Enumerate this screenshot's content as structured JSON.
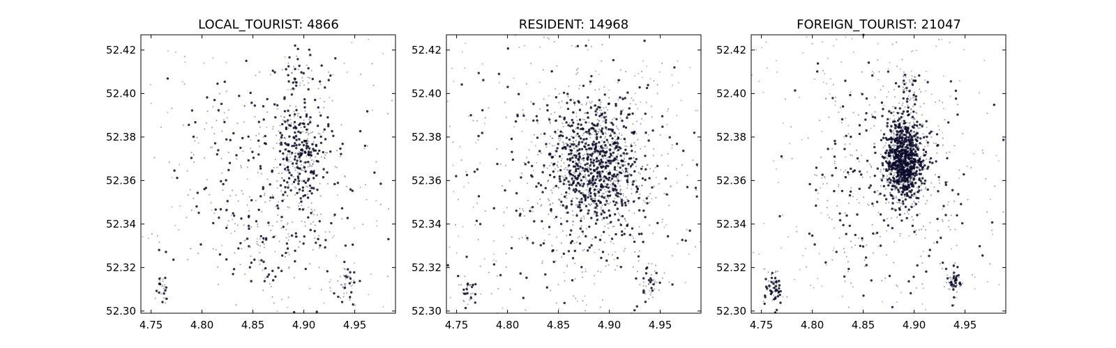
{
  "chart_data": [
    {
      "type": "scatter",
      "title": "LOCAL_TOURIST: 4866",
      "xlim": [
        4.74,
        4.99
      ],
      "ylim": [
        52.299,
        52.427
      ],
      "xticks": [
        "4.75",
        "4.80",
        "4.85",
        "4.90",
        "4.95"
      ],
      "yticks": [
        "52.30",
        "52.32",
        "52.34",
        "52.36",
        "52.38",
        "52.40",
        "52.42"
      ],
      "grid": false,
      "point_color": "#0b0b2a",
      "clusters": [
        {
          "x": 4.895,
          "y": 52.372,
          "spread_x": 0.012,
          "spread_y": 0.011,
          "weight": 0.32
        },
        {
          "x": 4.895,
          "y": 52.405,
          "spread_x": 0.012,
          "spread_y": 0.01,
          "weight": 0.06
        },
        {
          "x": 4.94,
          "y": 52.313,
          "spread_x": 0.006,
          "spread_y": 0.005,
          "weight": 0.05
        },
        {
          "x": 4.762,
          "y": 52.31,
          "spread_x": 0.004,
          "spread_y": 0.003,
          "weight": 0.03
        },
        {
          "x": 4.875,
          "y": 52.335,
          "spread_x": 0.03,
          "spread_y": 0.014,
          "weight": 0.14
        },
        {
          "x": 4.87,
          "y": 52.365,
          "spread_x": 0.06,
          "spread_y": 0.03,
          "weight": 0.4
        }
      ]
    },
    {
      "type": "scatter",
      "title": "RESIDENT: 14968",
      "xlim": [
        4.74,
        4.99
      ],
      "ylim": [
        52.299,
        52.427
      ],
      "xticks": [
        "4.75",
        "4.80",
        "4.85",
        "4.90",
        "4.95"
      ],
      "yticks": [
        "52.30",
        "52.32",
        "52.34",
        "52.36",
        "52.38",
        "52.40",
        "52.42"
      ],
      "grid": false,
      "point_color": "#0b0b2a",
      "clusters": [
        {
          "x": 4.888,
          "y": 52.367,
          "spread_x": 0.022,
          "spread_y": 0.014,
          "weight": 0.65
        },
        {
          "x": 4.94,
          "y": 52.313,
          "spread_x": 0.006,
          "spread_y": 0.004,
          "weight": 0.03
        },
        {
          "x": 4.762,
          "y": 52.309,
          "spread_x": 0.004,
          "spread_y": 0.003,
          "weight": 0.02
        },
        {
          "x": 4.87,
          "y": 52.36,
          "spread_x": 0.055,
          "spread_y": 0.03,
          "weight": 0.3
        }
      ]
    },
    {
      "type": "scatter",
      "title": "FOREIGN_TOURIST: 21047",
      "xlim": [
        4.74,
        4.99
      ],
      "ylim": [
        52.299,
        52.427
      ],
      "xticks": [
        "4.75",
        "4.80",
        "4.85",
        "4.90",
        "4.95"
      ],
      "yticks": [
        "52.30",
        "52.32",
        "52.34",
        "52.36",
        "52.38",
        "52.40",
        "52.42"
      ],
      "grid": false,
      "point_color": "#0b0b2a",
      "clusters": [
        {
          "x": 4.89,
          "y": 52.37,
          "spread_x": 0.009,
          "spread_y": 0.009,
          "weight": 0.66
        },
        {
          "x": 4.762,
          "y": 52.31,
          "spread_x": 0.004,
          "spread_y": 0.004,
          "weight": 0.04
        },
        {
          "x": 4.94,
          "y": 52.313,
          "spread_x": 0.004,
          "spread_y": 0.003,
          "weight": 0.03
        },
        {
          "x": 4.895,
          "y": 52.402,
          "spread_x": 0.006,
          "spread_y": 0.005,
          "weight": 0.03
        },
        {
          "x": 4.88,
          "y": 52.36,
          "spread_x": 0.045,
          "spread_y": 0.028,
          "weight": 0.24
        }
      ]
    }
  ]
}
